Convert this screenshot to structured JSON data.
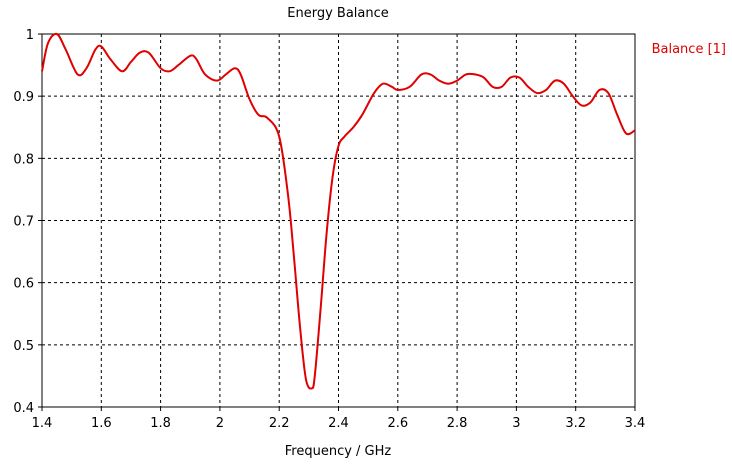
{
  "chart_data": {
    "type": "line",
    "title": "Energy Balance",
    "xlabel": "Frequency / GHz",
    "ylabel": "",
    "xlim": [
      1.4,
      3.4
    ],
    "ylim": [
      0.4,
      1.0
    ],
    "x_ticks": [
      "1.4",
      "1.6",
      "1.8",
      "2",
      "2.2",
      "2.4",
      "2.6",
      "2.8",
      "3",
      "3.2",
      "3.4"
    ],
    "y_ticks": [
      "0.4",
      "0.5",
      "0.6",
      "0.7",
      "0.8",
      "0.9",
      "1"
    ],
    "grid": true,
    "legend_position": "top-right",
    "series": [
      {
        "name": "Balance [1]",
        "color": "#e00000",
        "x": [
          1.4,
          1.42,
          1.45,
          1.48,
          1.52,
          1.55,
          1.58,
          1.6,
          1.63,
          1.67,
          1.7,
          1.73,
          1.76,
          1.8,
          1.83,
          1.86,
          1.9,
          1.92,
          1.95,
          1.99,
          2.02,
          2.05,
          2.07,
          2.1,
          2.13,
          2.16,
          2.2,
          2.23,
          2.25,
          2.27,
          2.29,
          2.31,
          2.32,
          2.34,
          2.36,
          2.38,
          2.4,
          2.42,
          2.45,
          2.48,
          2.52,
          2.55,
          2.58,
          2.6,
          2.64,
          2.68,
          2.71,
          2.74,
          2.77,
          2.8,
          2.83,
          2.86,
          2.89,
          2.92,
          2.95,
          2.98,
          3.01,
          3.04,
          3.07,
          3.1,
          3.13,
          3.16,
          3.19,
          3.22,
          3.25,
          3.28,
          3.31,
          3.34,
          3.37,
          3.4
        ],
        "values": [
          0.94,
          0.985,
          1.0,
          0.975,
          0.935,
          0.945,
          0.975,
          0.98,
          0.96,
          0.94,
          0.955,
          0.97,
          0.97,
          0.945,
          0.94,
          0.95,
          0.965,
          0.96,
          0.935,
          0.925,
          0.935,
          0.945,
          0.935,
          0.895,
          0.87,
          0.865,
          0.835,
          0.74,
          0.64,
          0.53,
          0.445,
          0.43,
          0.45,
          0.56,
          0.68,
          0.77,
          0.82,
          0.835,
          0.85,
          0.87,
          0.905,
          0.92,
          0.915,
          0.91,
          0.915,
          0.935,
          0.935,
          0.925,
          0.92,
          0.925,
          0.935,
          0.935,
          0.93,
          0.915,
          0.915,
          0.93,
          0.93,
          0.915,
          0.905,
          0.91,
          0.925,
          0.92,
          0.9,
          0.885,
          0.89,
          0.91,
          0.905,
          0.87,
          0.84,
          0.845
        ]
      }
    ]
  }
}
